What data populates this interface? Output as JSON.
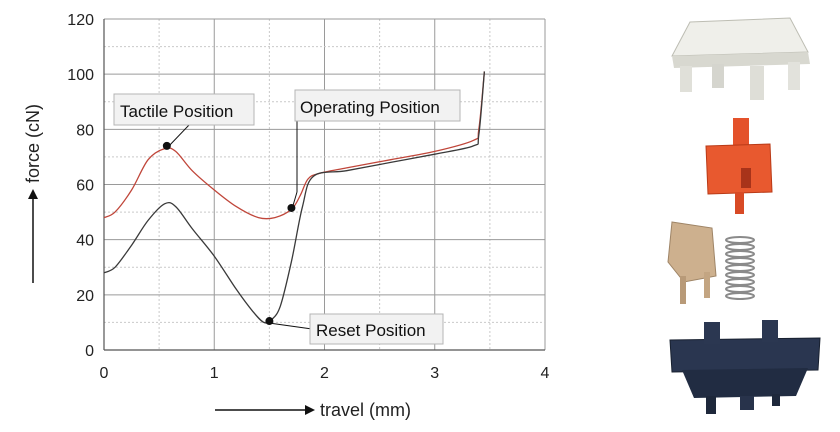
{
  "chart_data": {
    "type": "line",
    "xlabel": "travel (mm)",
    "ylabel": "force (cN)",
    "xlim": [
      0,
      4
    ],
    "ylim": [
      0,
      120
    ],
    "xticks": [
      "0",
      "1",
      "2",
      "3",
      "4"
    ],
    "yticks": [
      "0",
      "20",
      "40",
      "60",
      "80",
      "100",
      "120"
    ],
    "grid": true,
    "series": [
      {
        "color": "#c0463a",
        "x": [
          0,
          0.1,
          0.25,
          0.4,
          0.55,
          0.65,
          0.8,
          1.0,
          1.2,
          1.4,
          1.55,
          1.7,
          1.78,
          1.85,
          1.95,
          2.2,
          2.6,
          3.0,
          3.35,
          3.4,
          3.45
        ],
        "y": [
          48,
          50,
          58,
          69,
          73,
          72,
          65,
          58,
          52,
          48,
          48,
          51,
          56,
          62,
          64,
          66,
          69,
          72,
          76,
          80,
          101
        ]
      },
      {
        "color": "#3a3a3a",
        "x": [
          0,
          0.1,
          0.25,
          0.4,
          0.55,
          0.65,
          0.8,
          1.0,
          1.2,
          1.35,
          1.45,
          1.52,
          1.6,
          1.7,
          1.8,
          1.9,
          2.2,
          2.6,
          3.0,
          3.35,
          3.4,
          3.45
        ],
        "y": [
          28,
          30,
          38,
          47,
          53,
          52,
          44,
          34,
          22,
          14,
          10,
          11,
          16,
          32,
          52,
          63,
          65,
          68,
          71,
          74,
          78,
          101
        ]
      }
    ],
    "annotations": [
      {
        "label": "Tactile Position",
        "x": 0.57,
        "y": 74
      },
      {
        "label": "Operating Position",
        "x": 1.7,
        "y": 51.5
      },
      {
        "label": "Reset Position",
        "x": 1.5,
        "y": 10.5
      }
    ]
  },
  "parts": {
    "housing_top_color": "#e9e9e3",
    "stem_color": "#e4522b",
    "contact_color": "#c9aa86",
    "spring_color": "#8a8a8a",
    "housing_bottom_color": "#243046"
  }
}
